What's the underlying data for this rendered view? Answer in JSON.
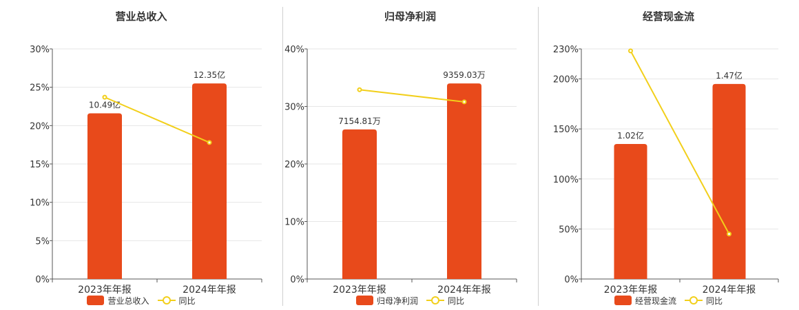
{
  "colors": {
    "bar": "#E84A1B",
    "line": "#F2CF1A"
  },
  "chart_data": [
    {
      "type": "bar",
      "title": "营业总收入",
      "categories": [
        "2023年年报",
        "2024年年报"
      ],
      "ylim": [
        0,
        30
      ],
      "yticks": [
        0,
        5,
        10,
        15,
        20,
        25,
        30
      ],
      "tick_suffix": "%",
      "series": [
        {
          "name": "营业总收入",
          "type": "bar",
          "values": [
            21.6,
            25.5
          ],
          "data_labels": [
            "10.49亿",
            "12.35亿"
          ]
        },
        {
          "name": "同比",
          "type": "line",
          "values": [
            23.7,
            17.8
          ]
        }
      ],
      "grid": true,
      "legend": "bottom"
    },
    {
      "type": "bar",
      "title": "归母净利润",
      "categories": [
        "2023年年报",
        "2024年年报"
      ],
      "ylim": [
        0,
        40
      ],
      "yticks": [
        0,
        10,
        20,
        30,
        40
      ],
      "tick_suffix": "%",
      "series": [
        {
          "name": "归母净利润",
          "type": "bar",
          "values": [
            26.0,
            34.0
          ],
          "data_labels": [
            "7154.81万",
            "9359.03万"
          ]
        },
        {
          "name": "同比",
          "type": "line",
          "values": [
            32.9,
            30.8
          ]
        }
      ],
      "grid": true,
      "legend": "bottom"
    },
    {
      "type": "bar",
      "title": "经营现金流",
      "categories": [
        "2023年年报",
        "2024年年报"
      ],
      "ylim": [
        0,
        230
      ],
      "yticks": [
        0,
        50,
        100,
        150,
        200,
        230
      ],
      "tick_suffix": "%",
      "series": [
        {
          "name": "经营现金流",
          "type": "bar",
          "values": [
            135,
            195
          ],
          "data_labels": [
            "1.02亿",
            "1.47亿"
          ]
        },
        {
          "name": "同比",
          "type": "line",
          "values": [
            228,
            45
          ]
        }
      ],
      "grid": true,
      "legend": "bottom"
    }
  ]
}
